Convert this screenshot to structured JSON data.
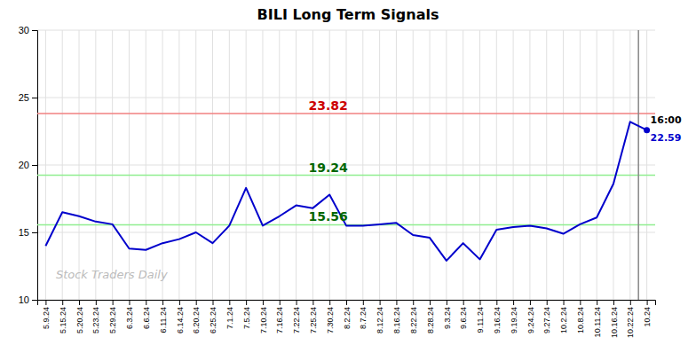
{
  "chart_data": {
    "type": "line",
    "title": "BILI Long Term Signals",
    "categories": [
      "5.9.24",
      "5.15.24",
      "5.20.24",
      "5.23.24",
      "5.29.24",
      "6.3.24",
      "6.6.24",
      "6.11.24",
      "6.14.24",
      "6.20.24",
      "6.25.24",
      "7.1.24",
      "7.5.24",
      "7.10.24",
      "7.16.24",
      "7.22.24",
      "7.25.24",
      "7.30.24",
      "8.2.24",
      "8.7.24",
      "8.12.24",
      "8.16.24",
      "8.22.24",
      "8.28.24",
      "9.3.24",
      "9.6.24",
      "9.11.24",
      "9.16.24",
      "9.19.24",
      "9.24.24",
      "9.27.24",
      "10.2.24",
      "10.8.24",
      "10.11.24",
      "10.16.24",
      "10.22.24",
      "10.24"
    ],
    "values": [
      14.0,
      16.5,
      16.2,
      15.8,
      15.6,
      13.8,
      13.7,
      14.2,
      14.5,
      15.0,
      14.2,
      15.5,
      18.3,
      15.5,
      16.2,
      17.0,
      16.8,
      17.8,
      15.5,
      15.5,
      15.6,
      15.7,
      14.8,
      14.6,
      12.9,
      14.2,
      13.0,
      15.2,
      15.4,
      15.5,
      15.3,
      14.9,
      15.6,
      16.1,
      18.6,
      23.2,
      22.59
    ],
    "color": "#0000cc",
    "ylim": [
      10,
      30
    ],
    "yticks": [
      10,
      15,
      20,
      25,
      30
    ],
    "grid": true,
    "hlines": [
      {
        "value": 23.82,
        "label": "23.82",
        "color": "#f08080",
        "label_color": "#cc0000"
      },
      {
        "value": 19.24,
        "label": "19.24",
        "color": "#90ee90",
        "label_color": "#006600"
      },
      {
        "value": 15.56,
        "label": "15.56",
        "color": "#90ee90",
        "label_color": "#006600"
      }
    ],
    "vlines": [
      {
        "after": "10.22.24",
        "color": "#888888"
      }
    ],
    "annotations": [
      {
        "text": "16:00",
        "category": "10.24",
        "color": "#000000"
      },
      {
        "text": "22.59",
        "category": "10.24",
        "color": "#0000cc"
      }
    ],
    "watermark": {
      "text": "Stock Traders Daily",
      "color": "#bbbbbb"
    }
  }
}
